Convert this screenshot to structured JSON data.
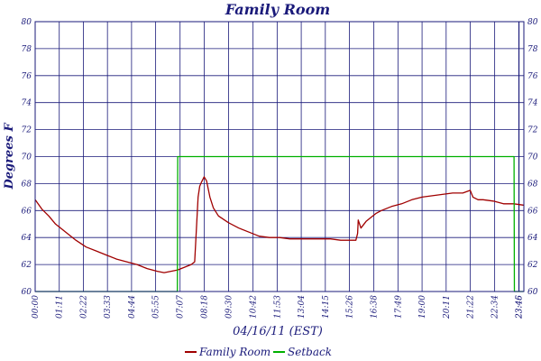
{
  "chart_data": {
    "type": "line",
    "title": "Family Room",
    "xlabel": "04/16/11 (EST)",
    "ylabel": "Degrees F",
    "ylim": [
      60,
      80
    ],
    "yticks": [
      60,
      62,
      64,
      66,
      68,
      70,
      72,
      74,
      76,
      78,
      80
    ],
    "xlim_minutes": [
      0,
      1440
    ],
    "xtick_labels": [
      "00:00",
      "01:11",
      "02:22",
      "03:33",
      "04:44",
      "05:55",
      "07:07",
      "08:18",
      "09:30",
      "10:42",
      "11:53",
      "13:04",
      "14:15",
      "15:26",
      "16:38",
      "17:49",
      "19:00",
      "20:11",
      "21:22",
      "22:34",
      "23:45",
      "23:46"
    ],
    "grid": true,
    "legend_position": "bottom",
    "colors": {
      "axis": "#1a1a7a",
      "grid": "#1a1a7a",
      "family_room": "#a00000",
      "setback": "#00b000"
    },
    "series": [
      {
        "name": "Family Room",
        "color": "#a00000",
        "x": [
          "00:00",
          "00:20",
          "00:40",
          "01:00",
          "01:30",
          "02:00",
          "02:30",
          "03:00",
          "03:30",
          "04:00",
          "04:30",
          "05:00",
          "05:30",
          "06:00",
          "06:20",
          "06:40",
          "07:00",
          "07:20",
          "07:40",
          "07:50",
          "08:00",
          "08:05",
          "08:10",
          "08:18",
          "08:25",
          "08:35",
          "08:45",
          "09:00",
          "09:30",
          "10:00",
          "10:30",
          "11:00",
          "11:30",
          "12:00",
          "12:30",
          "13:00",
          "13:30",
          "14:00",
          "14:30",
          "15:00",
          "15:30",
          "15:45",
          "15:50",
          "15:52",
          "16:00",
          "16:15",
          "16:30",
          "16:45",
          "17:00",
          "17:30",
          "18:00",
          "18:30",
          "19:00",
          "19:30",
          "20:00",
          "20:30",
          "21:00",
          "21:22",
          "21:30",
          "21:45",
          "22:00",
          "22:30",
          "23:00",
          "23:30",
          "23:59"
        ],
        "values": [
          66.8,
          66.1,
          65.6,
          65.0,
          64.4,
          63.8,
          63.3,
          63.0,
          62.7,
          62.4,
          62.2,
          62.0,
          61.7,
          61.5,
          61.4,
          61.5,
          61.6,
          61.8,
          62.0,
          62.2,
          67.0,
          67.8,
          68.1,
          68.5,
          68.2,
          67.0,
          66.2,
          65.6,
          65.1,
          64.7,
          64.4,
          64.1,
          64.0,
          64.0,
          63.9,
          63.9,
          63.9,
          63.9,
          63.9,
          63.8,
          63.8,
          63.8,
          64.3,
          65.3,
          64.7,
          65.2,
          65.5,
          65.8,
          66.0,
          66.3,
          66.5,
          66.8,
          67.0,
          67.1,
          67.2,
          67.3,
          67.3,
          67.5,
          67.0,
          66.8,
          66.8,
          66.7,
          66.5,
          66.5,
          66.4
        ]
      },
      {
        "name": "Setback",
        "color": "#00b000",
        "x": [
          "00:00",
          "06:59",
          "07:00",
          "23:31",
          "23:32",
          "23:59"
        ],
        "values": [
          60,
          60,
          70,
          70,
          60,
          60
        ]
      }
    ]
  }
}
